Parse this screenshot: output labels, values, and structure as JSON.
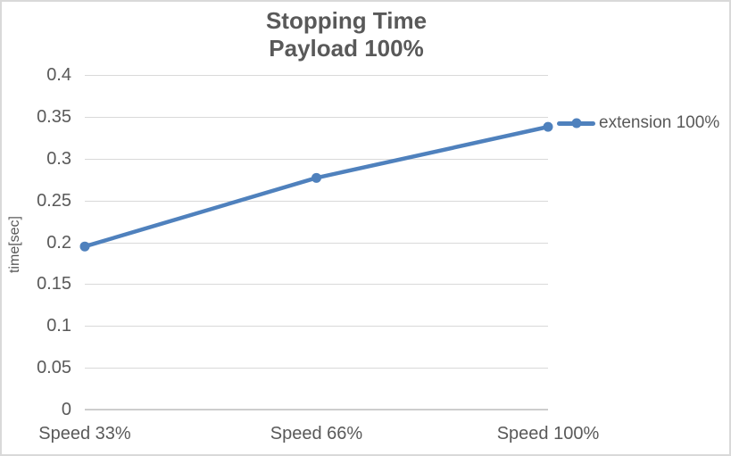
{
  "colors": {
    "series_blue": "#4f81bd",
    "text_gray": "#595959",
    "gridline_gray": "#d9d9d9",
    "axis_line_gray": "#cdcdcd",
    "chart_border_gray": "#d9d9d9"
  },
  "chart_data": {
    "type": "line",
    "title": "Stopping Time",
    "subtitle": "Payload 100%",
    "xlabel": "",
    "ylabel": "time[sec]",
    "categories": [
      "Speed 33%",
      "Speed 66%",
      "Speed 100%"
    ],
    "series": [
      {
        "name": "extension 100%",
        "values": [
          0.195,
          0.277,
          0.338
        ],
        "color": "#4f81bd",
        "marker": "circle"
      }
    ],
    "ylim": [
      0,
      0.4
    ],
    "y_ticks": [
      {
        "value": 0,
        "label": "0"
      },
      {
        "value": 0.05,
        "label": "0.05"
      },
      {
        "value": 0.1,
        "label": "0.1"
      },
      {
        "value": 0.15,
        "label": "0.15"
      },
      {
        "value": 0.2,
        "label": "0.2"
      },
      {
        "value": 0.25,
        "label": "0.25"
      },
      {
        "value": 0.3,
        "label": "0.3"
      },
      {
        "value": 0.35,
        "label": "0.35"
      },
      {
        "value": 0.4,
        "label": "0.4"
      }
    ],
    "grid": true,
    "legend_position": "right"
  }
}
